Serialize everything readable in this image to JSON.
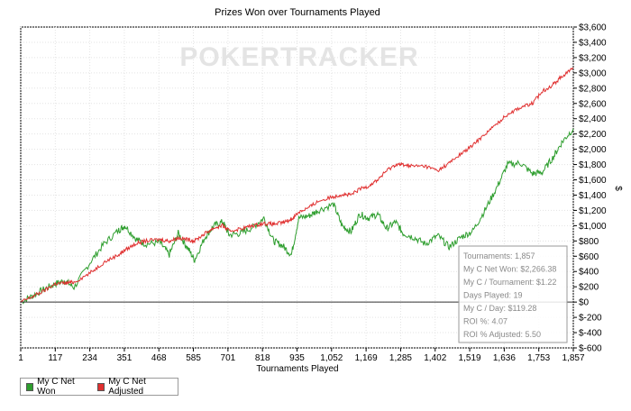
{
  "chart_data": {
    "type": "line",
    "title": "Prizes Won over Tournaments Played",
    "xlabel": "Tournaments Played",
    "ylabel": "$",
    "watermark": "POKERTRACKER",
    "x_ticks": [
      "1",
      "117",
      "234",
      "351",
      "468",
      "585",
      "701",
      "818",
      "935",
      "1,052",
      "1,169",
      "1,285",
      "1,402",
      "1,519",
      "1,636",
      "1,753",
      "1,857"
    ],
    "y_ticks": [
      "$3,600",
      "$3,400",
      "$3,200",
      "$3,000",
      "$2,800",
      "$2,600",
      "$2,400",
      "$2,200",
      "$2,000",
      "$1,800",
      "$1,600",
      "$1,400",
      "$1,200",
      "$1,000",
      "$800",
      "$600",
      "$400",
      "$200",
      "$0",
      "$-200",
      "$-400",
      "$-600"
    ],
    "xlim": [
      1,
      1857
    ],
    "ylim": [
      -600,
      3600
    ],
    "grid": true,
    "legend_position": "bottom-left",
    "series": [
      {
        "name": "My C Net Won",
        "color": "#2e9e2e",
        "points": [
          [
            1,
            0
          ],
          [
            40,
            80
          ],
          [
            80,
            170
          ],
          [
            117,
            240
          ],
          [
            150,
            280
          ],
          [
            180,
            190
          ],
          [
            234,
            520
          ],
          [
            280,
            760
          ],
          [
            330,
            940
          ],
          [
            351,
            1000
          ],
          [
            390,
            820
          ],
          [
            420,
            760
          ],
          [
            468,
            780
          ],
          [
            500,
            620
          ],
          [
            530,
            900
          ],
          [
            560,
            720
          ],
          [
            585,
            550
          ],
          [
            620,
            850
          ],
          [
            650,
            1000
          ],
          [
            680,
            1050
          ],
          [
            701,
            880
          ],
          [
            740,
            900
          ],
          [
            780,
            980
          ],
          [
            818,
            1100
          ],
          [
            850,
            800
          ],
          [
            880,
            740
          ],
          [
            910,
            620
          ],
          [
            935,
            1100
          ],
          [
            970,
            1130
          ],
          [
            1000,
            1200
          ],
          [
            1052,
            1280
          ],
          [
            1080,
            1000
          ],
          [
            1110,
            920
          ],
          [
            1140,
            1150
          ],
          [
            1169,
            1100
          ],
          [
            1200,
            1150
          ],
          [
            1230,
            960
          ],
          [
            1260,
            1050
          ],
          [
            1285,
            900
          ],
          [
            1320,
            850
          ],
          [
            1360,
            760
          ],
          [
            1402,
            870
          ],
          [
            1440,
            720
          ],
          [
            1480,
            850
          ],
          [
            1519,
            930
          ],
          [
            1560,
            1200
          ],
          [
            1600,
            1500
          ],
          [
            1636,
            1800
          ],
          [
            1680,
            1820
          ],
          [
            1720,
            1680
          ],
          [
            1753,
            1700
          ],
          [
            1790,
            1900
          ],
          [
            1820,
            2100
          ],
          [
            1857,
            2270
          ]
        ]
      },
      {
        "name": "My C Net Adjusted",
        "color": "#e03030",
        "points": [
          [
            1,
            0
          ],
          [
            40,
            70
          ],
          [
            80,
            150
          ],
          [
            117,
            240
          ],
          [
            150,
            250
          ],
          [
            180,
            260
          ],
          [
            234,
            380
          ],
          [
            280,
            520
          ],
          [
            330,
            620
          ],
          [
            351,
            680
          ],
          [
            390,
            770
          ],
          [
            420,
            800
          ],
          [
            468,
            820
          ],
          [
            500,
            800
          ],
          [
            530,
            840
          ],
          [
            560,
            820
          ],
          [
            585,
            800
          ],
          [
            620,
            900
          ],
          [
            650,
            970
          ],
          [
            680,
            1000
          ],
          [
            701,
            930
          ],
          [
            740,
            960
          ],
          [
            780,
            1000
          ],
          [
            818,
            1030
          ],
          [
            850,
            1020
          ],
          [
            880,
            1040
          ],
          [
            910,
            1080
          ],
          [
            935,
            1180
          ],
          [
            970,
            1240
          ],
          [
            1000,
            1320
          ],
          [
            1052,
            1380
          ],
          [
            1080,
            1410
          ],
          [
            1110,
            1400
          ],
          [
            1140,
            1480
          ],
          [
            1169,
            1520
          ],
          [
            1200,
            1600
          ],
          [
            1230,
            1720
          ],
          [
            1260,
            1800
          ],
          [
            1285,
            1800
          ],
          [
            1320,
            1780
          ],
          [
            1360,
            1780
          ],
          [
            1402,
            1720
          ],
          [
            1440,
            1820
          ],
          [
            1480,
            1940
          ],
          [
            1519,
            2050
          ],
          [
            1560,
            2200
          ],
          [
            1600,
            2330
          ],
          [
            1636,
            2460
          ],
          [
            1680,
            2550
          ],
          [
            1720,
            2600
          ],
          [
            1753,
            2760
          ],
          [
            1790,
            2850
          ],
          [
            1820,
            2960
          ],
          [
            1857,
            3060
          ]
        ]
      }
    ],
    "tooltip": [
      "Tournaments: 1,857",
      "My C Net Won: $2,266.38",
      "My C / Tournament: $1.22",
      "Days Played: 19",
      "My C / Day: $119.28",
      "ROI %: 4.07",
      "ROI % Adjusted: 5.50"
    ]
  },
  "legend": [
    {
      "label": "My C Net Won",
      "color": "#2e9e2e"
    },
    {
      "label": "My C Net Adjusted",
      "color": "#e03030"
    }
  ]
}
